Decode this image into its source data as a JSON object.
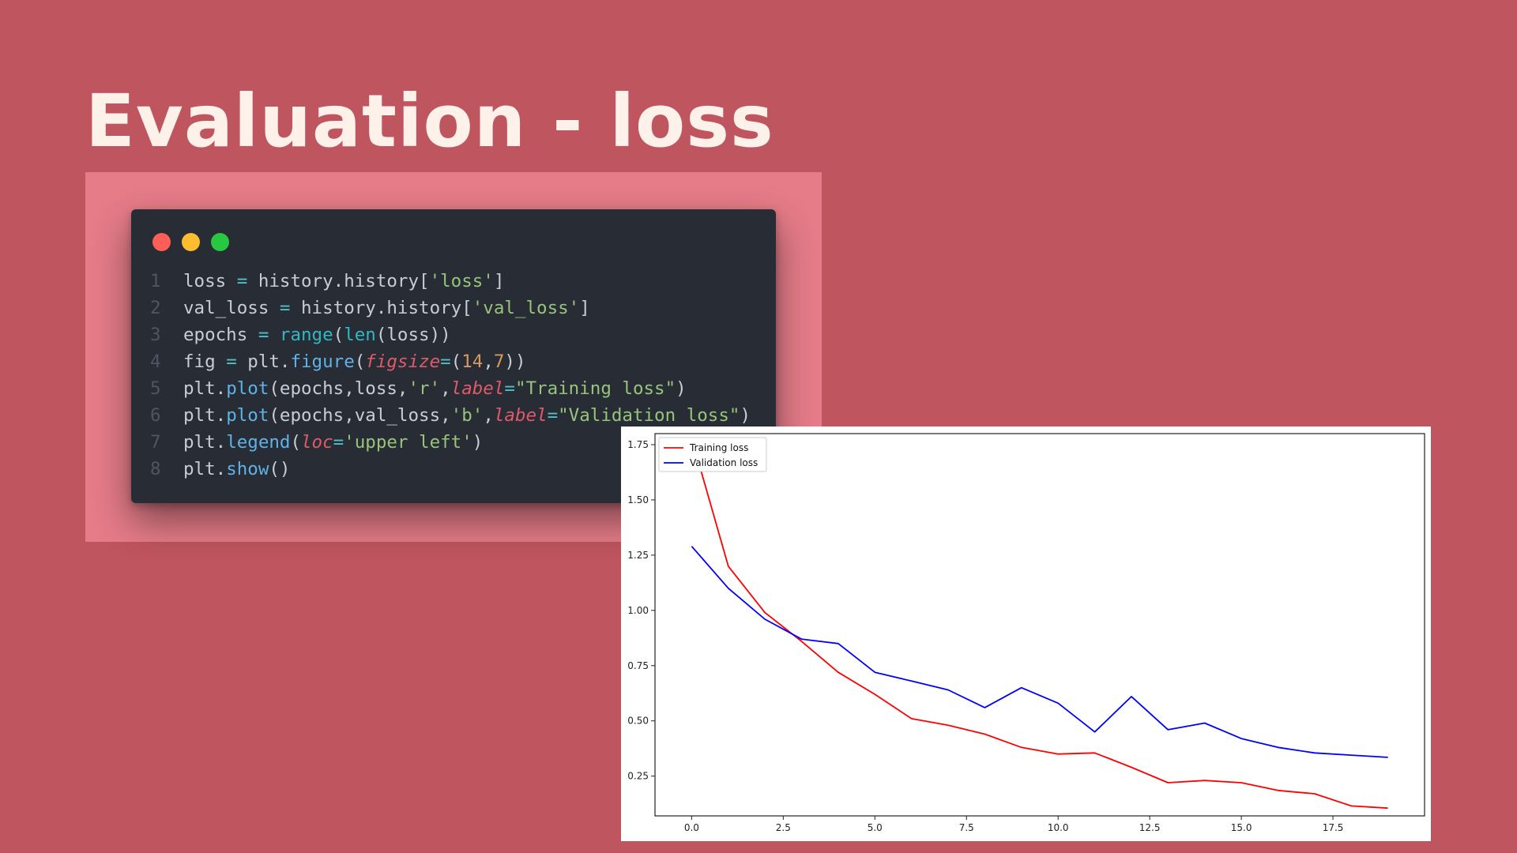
{
  "slide": {
    "title": "Evaluation - loss",
    "background_color": "#bf555e",
    "panel_color": "#e57c88"
  },
  "code_window": {
    "dots": [
      {
        "name": "close-dot",
        "color": "#ff5f57"
      },
      {
        "name": "minimize-dot",
        "color": "#febc2e"
      },
      {
        "name": "zoom-dot",
        "color": "#28c840"
      }
    ],
    "lines": [
      {
        "n": "1",
        "tokens": [
          {
            "t": "loss ",
            "c": "plain"
          },
          {
            "t": "=",
            "c": "op"
          },
          {
            "t": " history.history[",
            "c": "plain"
          },
          {
            "t": "'loss'",
            "c": "str"
          },
          {
            "t": "]",
            "c": "plain"
          }
        ]
      },
      {
        "n": "2",
        "tokens": [
          {
            "t": "val_loss ",
            "c": "plain"
          },
          {
            "t": "=",
            "c": "op"
          },
          {
            "t": " history.history[",
            "c": "plain"
          },
          {
            "t": "'val_loss'",
            "c": "str"
          },
          {
            "t": "]",
            "c": "plain"
          }
        ]
      },
      {
        "n": "3",
        "tokens": [
          {
            "t": "epochs ",
            "c": "plain"
          },
          {
            "t": "=",
            "c": "op"
          },
          {
            "t": " ",
            "c": "plain"
          },
          {
            "t": "range",
            "c": "bi"
          },
          {
            "t": "(",
            "c": "plain"
          },
          {
            "t": "len",
            "c": "bi"
          },
          {
            "t": "(loss))",
            "c": "plain"
          }
        ]
      },
      {
        "n": "4",
        "tokens": [
          {
            "t": "fig ",
            "c": "plain"
          },
          {
            "t": "=",
            "c": "op"
          },
          {
            "t": " plt.",
            "c": "plain"
          },
          {
            "t": "figure",
            "c": "fn"
          },
          {
            "t": "(",
            "c": "plain"
          },
          {
            "t": "figsize",
            "c": "kw"
          },
          {
            "t": "=",
            "c": "op"
          },
          {
            "t": "(",
            "c": "plain"
          },
          {
            "t": "14",
            "c": "num"
          },
          {
            "t": ",",
            "c": "plain"
          },
          {
            "t": "7",
            "c": "num"
          },
          {
            "t": "))",
            "c": "plain"
          }
        ]
      },
      {
        "n": "5",
        "tokens": [
          {
            "t": "plt.",
            "c": "plain"
          },
          {
            "t": "plot",
            "c": "fn"
          },
          {
            "t": "(epochs,loss,",
            "c": "plain"
          },
          {
            "t": "'r'",
            "c": "str"
          },
          {
            "t": ",",
            "c": "plain"
          },
          {
            "t": "label",
            "c": "kw"
          },
          {
            "t": "=",
            "c": "op"
          },
          {
            "t": "\"Training loss\"",
            "c": "str"
          },
          {
            "t": ")",
            "c": "plain"
          }
        ]
      },
      {
        "n": "6",
        "tokens": [
          {
            "t": "plt.",
            "c": "plain"
          },
          {
            "t": "plot",
            "c": "fn"
          },
          {
            "t": "(epochs,val_loss,",
            "c": "plain"
          },
          {
            "t": "'b'",
            "c": "str"
          },
          {
            "t": ",",
            "c": "plain"
          },
          {
            "t": "label",
            "c": "kw"
          },
          {
            "t": "=",
            "c": "op"
          },
          {
            "t": "\"Validation loss\"",
            "c": "str"
          },
          {
            "t": ")",
            "c": "plain"
          }
        ]
      },
      {
        "n": "7",
        "tokens": [
          {
            "t": "plt.",
            "c": "plain"
          },
          {
            "t": "legend",
            "c": "fn"
          },
          {
            "t": "(",
            "c": "plain"
          },
          {
            "t": "loc",
            "c": "kw"
          },
          {
            "t": "=",
            "c": "op"
          },
          {
            "t": "'upper left'",
            "c": "str"
          },
          {
            "t": ")",
            "c": "plain"
          }
        ]
      },
      {
        "n": "8",
        "tokens": [
          {
            "t": "plt.",
            "c": "plain"
          },
          {
            "t": "show",
            "c": "fn"
          },
          {
            "t": "()",
            "c": "plain"
          }
        ]
      }
    ]
  },
  "chart_data": {
    "type": "line",
    "title": "",
    "xlabel": "",
    "ylabel": "",
    "xlim": [
      -1,
      20
    ],
    "ylim": [
      0.07,
      1.8
    ],
    "x_ticks": [
      0.0,
      2.5,
      5.0,
      7.5,
      10.0,
      12.5,
      15.0,
      17.5
    ],
    "x_tick_labels": [
      "0.0",
      "2.5",
      "5.0",
      "7.5",
      "10.0",
      "12.5",
      "15.0",
      "17.5"
    ],
    "y_ticks": [
      0.25,
      0.5,
      0.75,
      1.0,
      1.25,
      1.5,
      1.75
    ],
    "y_tick_labels": [
      "0.25",
      "0.50",
      "0.75",
      "1.00",
      "1.25",
      "1.50",
      "1.75"
    ],
    "grid": false,
    "legend_position": "upper left",
    "x": [
      0,
      1,
      2,
      3,
      4,
      5,
      6,
      7,
      8,
      9,
      10,
      11,
      12,
      13,
      14,
      15,
      16,
      17,
      18,
      19
    ],
    "series": [
      {
        "name": "Training loss",
        "color": "#ff0000",
        "values": [
          1.78,
          1.2,
          0.99,
          0.86,
          0.72,
          0.62,
          0.51,
          0.48,
          0.44,
          0.38,
          0.35,
          0.355,
          0.29,
          0.22,
          0.23,
          0.22,
          0.185,
          0.17,
          0.115,
          0.105
        ]
      },
      {
        "name": "Validation loss",
        "color": "#0000ff",
        "values": [
          1.29,
          1.1,
          0.96,
          0.87,
          0.85,
          0.72,
          0.68,
          0.64,
          0.56,
          0.65,
          0.58,
          0.45,
          0.61,
          0.46,
          0.49,
          0.42,
          0.38,
          0.355,
          0.345,
          0.335
        ]
      }
    ]
  }
}
